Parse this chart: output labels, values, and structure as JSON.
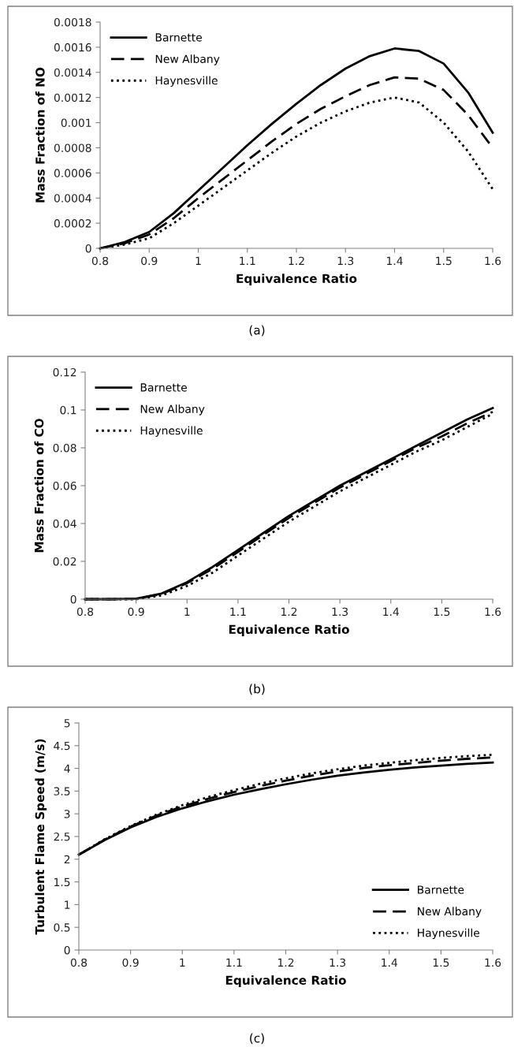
{
  "chart_data": [
    {
      "type": "line",
      "xlabel": "Equivalence Ratio",
      "ylabel": "Mass Fraction of NO",
      "annotations": [
        "(a)"
      ],
      "x": [
        0.8,
        0.85,
        0.9,
        0.95,
        1.0,
        1.05,
        1.1,
        1.15,
        1.2,
        1.25,
        1.3,
        1.35,
        1.4,
        1.45,
        1.5,
        1.55,
        1.6
      ],
      "xlim": [
        0.8,
        1.6
      ],
      "xticks": [
        0.8,
        0.9,
        1,
        1.1,
        1.2,
        1.3,
        1.4,
        1.5,
        1.6
      ],
      "ylim": [
        0,
        0.0018
      ],
      "yticks": [
        0,
        0.0002,
        0.0004,
        0.0006,
        0.0008,
        0.001,
        0.0012,
        0.0014,
        0.0016,
        0.0018
      ],
      "legend": "top left",
      "grid": false,
      "series": [
        {
          "name": "Barnette",
          "color": "#000000",
          "line_style": "solid",
          "values": [
            0,
            5e-05,
            0.00013,
            0.00028,
            0.00046,
            0.00064,
            0.00082,
            0.00099,
            0.00115,
            0.0013,
            0.00143,
            0.00153,
            0.00159,
            0.00157,
            0.00147,
            0.00124,
            0.00092
          ]
        },
        {
          "name": "New Albany",
          "color": "#000000",
          "line_style": "dashed",
          "values": [
            0,
            4e-05,
            0.00011,
            0.00024,
            0.0004,
            0.00055,
            0.0007,
            0.00085,
            0.00099,
            0.00111,
            0.00121,
            0.0013,
            0.00136,
            0.00135,
            0.00126,
            0.00106,
            0.0008
          ]
        },
        {
          "name": "Haynesville",
          "color": "#000000",
          "line_style": "dotted",
          "values": [
            0,
            3e-05,
            8e-05,
            0.0002,
            0.00034,
            0.00048,
            0.00062,
            0.00076,
            0.00089,
            0.001,
            0.00109,
            0.00116,
            0.0012,
            0.00116,
            0.001,
            0.00077,
            0.00047
          ]
        }
      ]
    },
    {
      "type": "line",
      "xlabel": "Equivalence Ratio",
      "ylabel": "Mass Fraction of CO",
      "annotations": [
        "(b)"
      ],
      "x": [
        0.8,
        0.85,
        0.9,
        0.95,
        1.0,
        1.05,
        1.1,
        1.15,
        1.2,
        1.25,
        1.3,
        1.35,
        1.4,
        1.45,
        1.5,
        1.55,
        1.6
      ],
      "xlim": [
        0.8,
        1.6
      ],
      "xticks": [
        0.8,
        0.9,
        1,
        1.1,
        1.2,
        1.3,
        1.4,
        1.5,
        1.6
      ],
      "ylim": [
        0,
        0.12
      ],
      "yticks": [
        0,
        0.02,
        0.04,
        0.06,
        0.08,
        0.1,
        0.12
      ],
      "legend": "top left",
      "grid": false,
      "series": [
        {
          "name": "Barnette",
          "color": "#000000",
          "line_style": "solid",
          "values": [
            0,
            0,
            0.0003,
            0.003,
            0.009,
            0.017,
            0.026,
            0.035,
            0.044,
            0.052,
            0.06,
            0.067,
            0.074,
            0.081,
            0.088,
            0.095,
            0.101
          ]
        },
        {
          "name": "New Albany",
          "color": "#000000",
          "line_style": "dashed",
          "values": [
            0,
            0,
            0.0002,
            0.0027,
            0.0085,
            0.016,
            0.025,
            0.034,
            0.043,
            0.051,
            0.059,
            0.066,
            0.073,
            0.08,
            0.086,
            0.093,
            0.099
          ]
        },
        {
          "name": "Haynesville",
          "color": "#000000",
          "line_style": "dotted",
          "values": [
            0,
            0,
            0,
            0.002,
            0.007,
            0.014,
            0.023,
            0.032,
            0.041,
            0.049,
            0.057,
            0.064,
            0.071,
            0.078,
            0.084,
            0.091,
            0.098
          ]
        }
      ]
    },
    {
      "type": "line",
      "xlabel": "Equivalence Ratio",
      "ylabel": "Turbulent Flame Speed (m/s)",
      "annotations": [
        "(c)"
      ],
      "x": [
        0.8,
        0.85,
        0.9,
        0.95,
        1.0,
        1.05,
        1.1,
        1.15,
        1.2,
        1.25,
        1.3,
        1.35,
        1.4,
        1.45,
        1.5,
        1.55,
        1.6
      ],
      "xlim": [
        0.8,
        1.6
      ],
      "xticks": [
        0.8,
        0.9,
        1,
        1.1,
        1.2,
        1.3,
        1.4,
        1.5,
        1.6
      ],
      "ylim": [
        0,
        5
      ],
      "yticks": [
        0,
        0.5,
        1,
        1.5,
        2,
        2.5,
        3,
        3.5,
        4,
        4.5,
        5
      ],
      "legend": "bottom right",
      "grid": false,
      "series": [
        {
          "name": "Barnette",
          "color": "#000000",
          "line_style": "solid",
          "values": [
            2.1,
            2.42,
            2.7,
            2.93,
            3.12,
            3.28,
            3.42,
            3.54,
            3.65,
            3.75,
            3.84,
            3.91,
            3.97,
            4.02,
            4.06,
            4.1,
            4.13
          ]
        },
        {
          "name": "New Albany",
          "color": "#000000",
          "line_style": "dashed",
          "values": [
            2.1,
            2.43,
            2.72,
            2.96,
            3.16,
            3.33,
            3.48,
            3.61,
            3.73,
            3.84,
            3.93,
            4.01,
            4.07,
            4.12,
            4.17,
            4.21,
            4.24
          ]
        },
        {
          "name": "Haynesville",
          "color": "#000000",
          "line_style": "dotted",
          "values": [
            2.1,
            2.44,
            2.73,
            2.98,
            3.19,
            3.37,
            3.52,
            3.66,
            3.78,
            3.89,
            3.98,
            4.06,
            4.12,
            4.18,
            4.23,
            4.27,
            4.3
          ]
        }
      ]
    }
  ]
}
